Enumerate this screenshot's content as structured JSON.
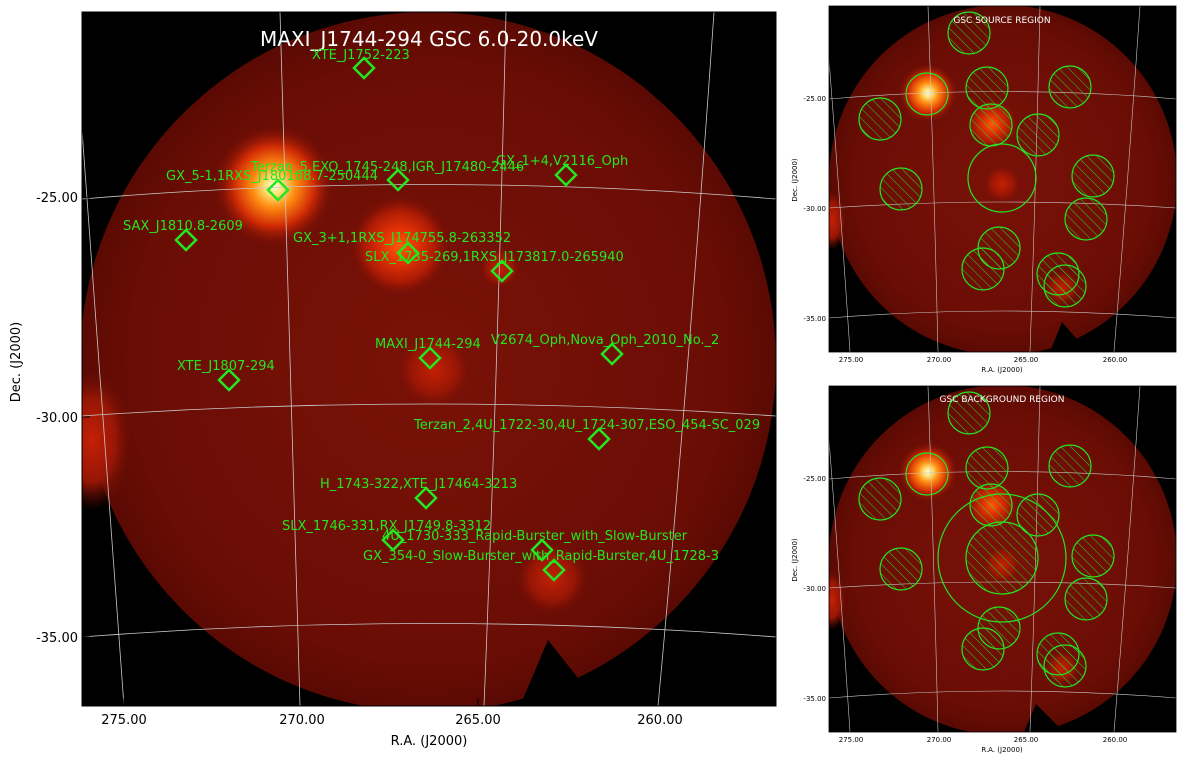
{
  "main_plot": {
    "title": "MAXI_J1744-294 GSC 6.0-20.0keV",
    "xlabel": "R.A. (J2000)",
    "ylabel": "Dec. (J2000)",
    "x_ticks": [
      "275.00",
      "270.00",
      "265.00",
      "260.00"
    ],
    "y_ticks": [
      "-25.00",
      "-30.00",
      "-35.00"
    ],
    "sources": [
      {
        "name": "XTE_J1752-223"
      },
      {
        "name": "Terzan_5,EXO_1745-248,IGR_J17480-2446"
      },
      {
        "name": "GX_5-1,1RXS_J180108.7-250444"
      },
      {
        "name": "GX_1+4,V2116_Oph"
      },
      {
        "name": "SAX_J1810.8-2609"
      },
      {
        "name": "GX_3+1,1RXS_J174755.8-263352"
      },
      {
        "name": "SLX_1735-269,1RXS_J173817.0-265940"
      },
      {
        "name": "MAXI_J1744-294"
      },
      {
        "name": "V2674_Oph,Nova_Oph_2010_No._2"
      },
      {
        "name": "XTE_J1807-294"
      },
      {
        "name": "Terzan_2,4U_1722-30,4U_1724-307,ESO_454-SC_029"
      },
      {
        "name": "H_1743-322,XTE_J17464-3213"
      },
      {
        "name": "SLX_1746-331,RX_J1749.8-3312"
      },
      {
        "name": "4U_1730-333_Rapid-Burster_with_Slow-Burster"
      },
      {
        "name": "GX_354-0_Slow-Burster_with_Rapid-Burster,4U_1728-3"
      }
    ]
  },
  "source_region_panel": {
    "title": "GSC SOURCE REGION",
    "xlabel": "R.A. (J2000)",
    "ylabel": "Dec. (J2000)",
    "x_ticks": [
      "275.00",
      "270.00",
      "265.00",
      "260.00"
    ],
    "y_ticks": [
      "-25.00",
      "-30.00",
      "-35.00"
    ]
  },
  "background_region_panel": {
    "title": "GSC BACKGROUND REGION",
    "xlabel": "R.A. (J2000)",
    "ylabel": "Dec. (J2000)",
    "x_ticks": [
      "275.00",
      "270.00",
      "265.00",
      "260.00"
    ],
    "y_ticks": [
      "-25.00",
      "-30.00",
      "-35.00"
    ]
  },
  "colors": {
    "marker": "#22e81f",
    "grid": "#c8c8c8",
    "background": "#000000",
    "diffuse": "#6e0c05"
  }
}
